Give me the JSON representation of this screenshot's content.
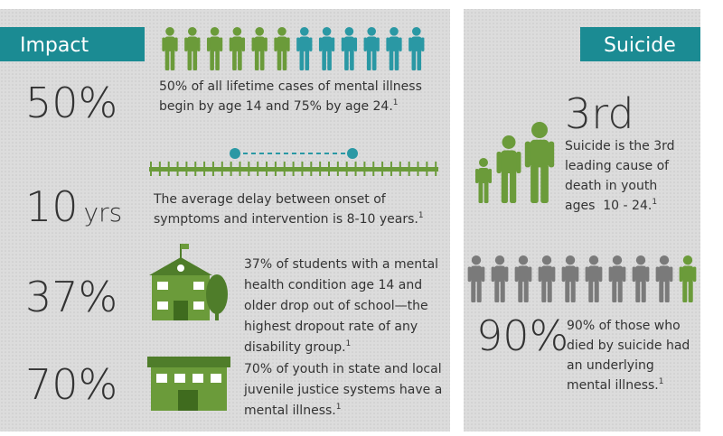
{
  "impact": {
    "title": "Impact",
    "stats": [
      {
        "figure": "50%",
        "text": [
          "50% of all lifetime cases of mental illness",
          "begin by age 14 and 75% by age 24."
        ],
        "footnote": "1"
      },
      {
        "figure": "10",
        "unit": "yrs",
        "text": [
          "The average delay between onset of",
          "symptoms and intervention is 8-10 years."
        ],
        "footnote": "1"
      },
      {
        "figure": "37%",
        "text": [
          "37% of students with a mental",
          "health condition age 14 and",
          "older drop out of school—the",
          "highest dropout rate of any",
          "disability group."
        ],
        "footnote": "1"
      },
      {
        "figure": "70%",
        "text": [
          "70% of youth in state and local",
          "juvenile justice systems have a",
          "mental illness."
        ],
        "footnote": "1"
      }
    ]
  },
  "suicide": {
    "title": "Suicide",
    "stats": [
      {
        "figure": "3rd",
        "text": [
          "Suicide is the 3rd",
          "leading cause of",
          "death in youth",
          "ages  10 - 24."
        ],
        "footnote": "1"
      },
      {
        "figure": "90%",
        "text": [
          "90% of those who",
          "died by suicide had",
          "an underlying",
          "mental illness."
        ],
        "footnote": "1"
      }
    ]
  }
}
